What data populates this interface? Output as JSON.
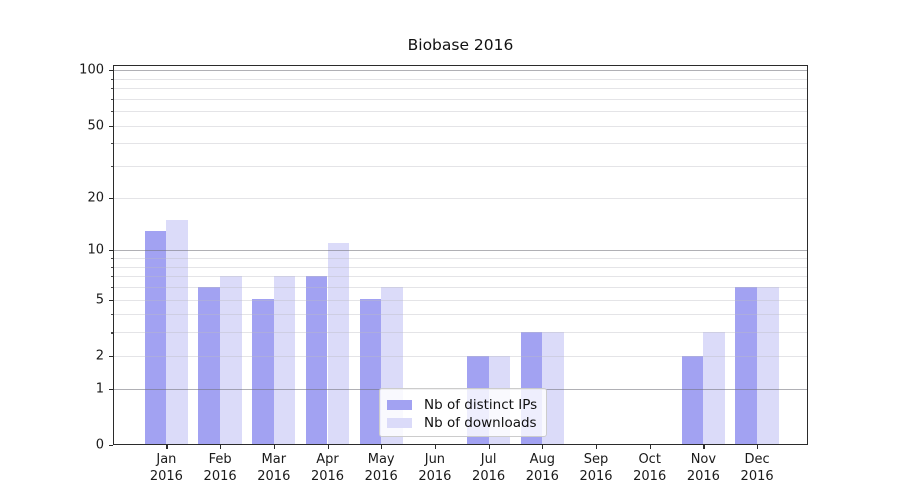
{
  "title": "Biobase 2016",
  "chart_data": {
    "type": "bar",
    "title": "Biobase 2016",
    "categories": [
      {
        "month": "Jan",
        "year": "2016"
      },
      {
        "month": "Feb",
        "year": "2016"
      },
      {
        "month": "Mar",
        "year": "2016"
      },
      {
        "month": "Apr",
        "year": "2016"
      },
      {
        "month": "May",
        "year": "2016"
      },
      {
        "month": "Jun",
        "year": "2016"
      },
      {
        "month": "Jul",
        "year": "2016"
      },
      {
        "month": "Aug",
        "year": "2016"
      },
      {
        "month": "Sep",
        "year": "2016"
      },
      {
        "month": "Oct",
        "year": "2016"
      },
      {
        "month": "Nov",
        "year": "2016"
      },
      {
        "month": "Dec",
        "year": "2016"
      }
    ],
    "series": [
      {
        "name": "Nb of distinct IPs",
        "color": "#a2a2f2",
        "values": [
          13,
          6,
          5,
          7,
          5,
          0,
          2,
          3,
          0,
          0,
          2,
          6
        ]
      },
      {
        "name": "Nb of downloads",
        "color": "#dbdbf9",
        "values": [
          15,
          7,
          7,
          11,
          6,
          0,
          2,
          3,
          0,
          0,
          3,
          6
        ]
      }
    ],
    "xlabel": "",
    "ylabel": "",
    "y_axis": {
      "scale": "log10(1+y)",
      "ylim": [
        0,
        100
      ],
      "tick_labels": [
        "0",
        "1",
        "2",
        "5",
        "10",
        "20",
        "50",
        "100"
      ],
      "tick_values": [
        0,
        1,
        2,
        5,
        10,
        20,
        50,
        100
      ],
      "major_grid_values": [
        1,
        10,
        100
      ],
      "minor_grid_values": [
        2,
        3,
        4,
        5,
        6,
        7,
        8,
        9,
        20,
        30,
        40,
        50,
        60,
        70,
        80,
        90
      ],
      "grid": "on"
    },
    "legend": {
      "position": "lower center",
      "entries": [
        "Nb of distinct IPs",
        "Nb of downloads"
      ]
    }
  }
}
